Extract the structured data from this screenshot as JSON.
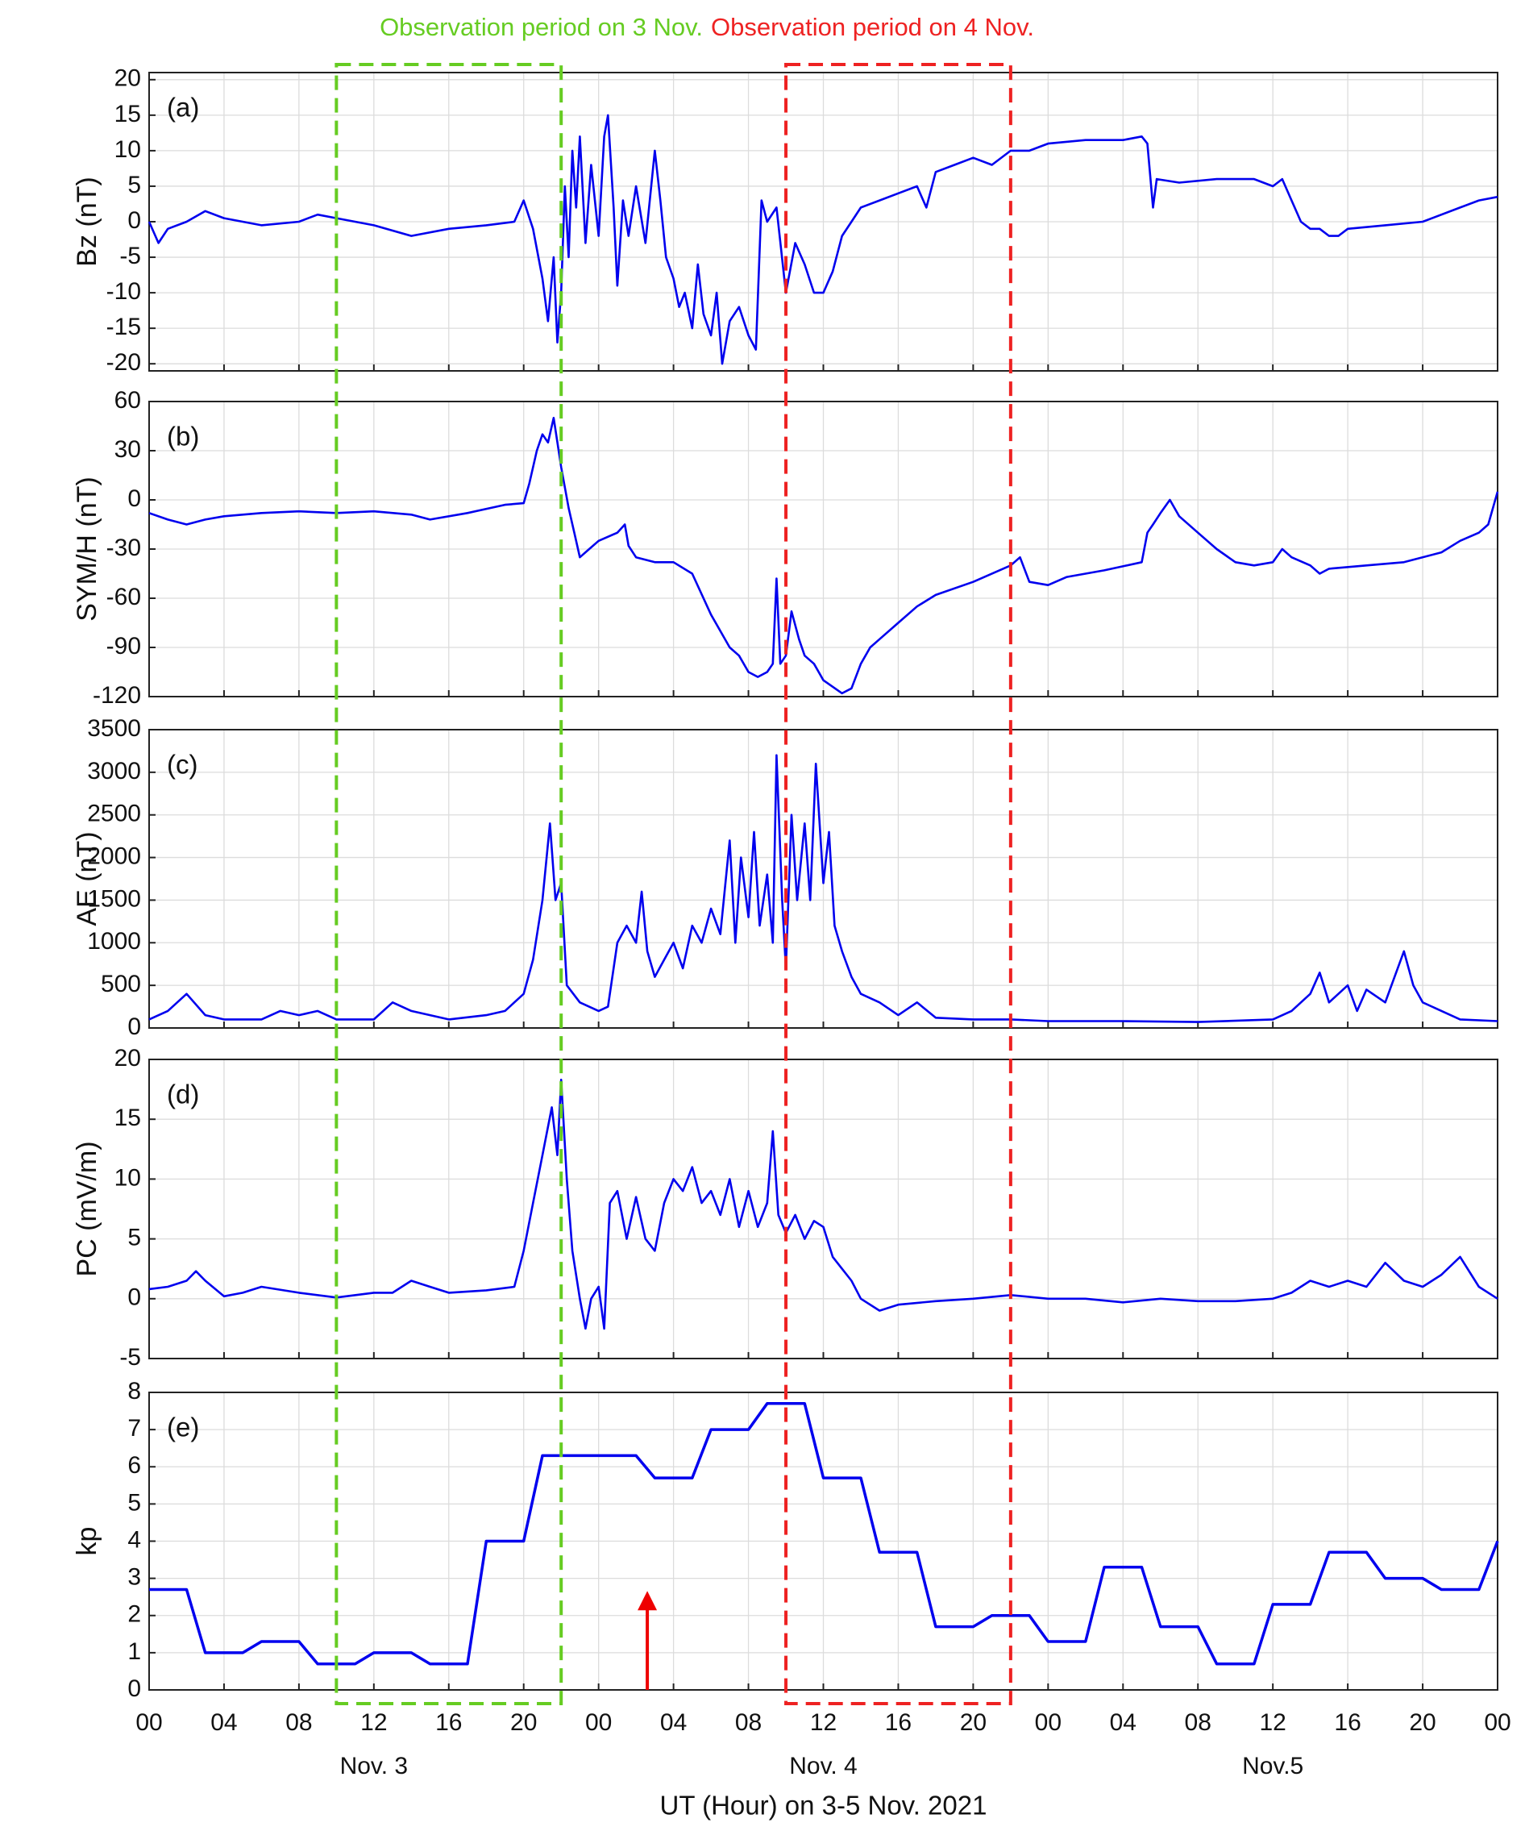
{
  "observation_periods": [
    {
      "label": "Observation period on 3 Nov.",
      "color": "#66cc22",
      "start": 10,
      "end": 22
    },
    {
      "label": "Observation period on 4 Nov.",
      "color": "#ee2222",
      "start": 34,
      "end": 46
    }
  ],
  "chart_data": [
    {
      "type": "line",
      "panel_label": "(a)",
      "ylabel": "Bz (nT)",
      "color": "#0000ee",
      "grid": true,
      "xlim": [
        0,
        72
      ],
      "xticks": [
        0,
        4,
        8,
        12,
        16,
        20,
        24,
        28,
        32,
        36,
        40,
        44,
        48,
        52,
        56,
        60,
        64,
        68,
        72
      ],
      "ylim": [
        -21,
        21
      ],
      "yticks": [
        -20,
        -15,
        -10,
        -5,
        0,
        5,
        10,
        15,
        20
      ],
      "x": [
        0,
        0.5,
        1,
        2,
        3,
        4,
        6,
        8,
        9,
        10,
        12,
        14,
        16,
        18,
        19.5,
        20,
        20.5,
        21,
        21.3,
        21.6,
        21.8,
        22,
        22.2,
        22.4,
        22.6,
        22.8,
        23,
        23.3,
        23.6,
        24,
        24.3,
        24.5,
        24.8,
        25,
        25.3,
        25.6,
        26,
        26.5,
        27,
        27.3,
        27.6,
        28,
        28.3,
        28.6,
        29,
        29.3,
        29.6,
        30,
        30.3,
        30.6,
        31,
        31.5,
        32,
        32.4,
        32.7,
        33,
        33.5,
        34,
        34.5,
        35,
        35.5,
        36,
        36.5,
        37,
        37.5,
        38,
        39,
        40,
        41,
        41.5,
        42,
        43,
        44,
        45,
        46,
        47,
        48,
        50,
        52,
        53,
        53.3,
        53.6,
        53.8,
        55,
        57,
        59,
        60,
        60.5,
        61,
        61.5,
        62,
        62.5,
        63,
        63.5,
        64,
        66,
        68,
        70,
        71,
        72
      ],
      "values": [
        0,
        -3,
        -1,
        0,
        1.5,
        0.5,
        -0.5,
        0,
        1,
        0.5,
        -0.5,
        -2,
        -1,
        -0.5,
        0,
        3,
        -1,
        -8,
        -14,
        -5,
        -17,
        -10,
        5,
        -5,
        10,
        2,
        12,
        -3,
        8,
        -2,
        12,
        15,
        2,
        -9,
        3,
        -2,
        5,
        -3,
        10,
        3,
        -5,
        -8,
        -12,
        -10,
        -15,
        -6,
        -13,
        -16,
        -10,
        -20,
        -14,
        -12,
        -16,
        -18,
        3,
        0,
        2,
        -10,
        -3,
        -6,
        -10,
        -10,
        -7,
        -2,
        0,
        2,
        3,
        4,
        5,
        2,
        7,
        8,
        9,
        8,
        10,
        10,
        11,
        11.5,
        11.5,
        12,
        11,
        2,
        6,
        5.5,
        6,
        6,
        5,
        6,
        3,
        0,
        -1,
        -1,
        -2,
        -2,
        -1,
        -0.5,
        0,
        2,
        3,
        3.5
      ]
    },
    {
      "type": "line",
      "panel_label": "(b)",
      "ylabel": "SYM/H (nT)",
      "color": "#0000ee",
      "grid": true,
      "xlim": [
        0,
        72
      ],
      "xticks": [
        0,
        4,
        8,
        12,
        16,
        20,
        24,
        28,
        32,
        36,
        40,
        44,
        48,
        52,
        56,
        60,
        64,
        68,
        72
      ],
      "ylim": [
        -120,
        60
      ],
      "yticks": [
        -120,
        -90,
        -60,
        -30,
        0,
        30,
        60
      ],
      "x": [
        0,
        1,
        2,
        3,
        4,
        6,
        8,
        10,
        12,
        14,
        15,
        17,
        19,
        20,
        20.3,
        20.7,
        21,
        21.3,
        21.6,
        22,
        22.4,
        22.7,
        23,
        23.5,
        24,
        25,
        25.4,
        25.6,
        26,
        27,
        28,
        29,
        30,
        31,
        31.5,
        32,
        32.5,
        33,
        33.3,
        33.5,
        33.7,
        34,
        34.3,
        34.7,
        35,
        35.5,
        36,
        36.5,
        37,
        37.5,
        38,
        38.5,
        39,
        40,
        41,
        42,
        44,
        46,
        46.5,
        47,
        48,
        49,
        51,
        53,
        53.3,
        53.6,
        54,
        54.5,
        55,
        56,
        57,
        58,
        59,
        60,
        60.5,
        61,
        62,
        62.5,
        63,
        65,
        67,
        69,
        70,
        71,
        71.5,
        72
      ],
      "values": [
        -8,
        -12,
        -15,
        -12,
        -10,
        -8,
        -7,
        -8,
        -7,
        -9,
        -12,
        -8,
        -3,
        -2,
        10,
        30,
        40,
        35,
        50,
        20,
        -5,
        -20,
        -35,
        -30,
        -25,
        -20,
        -15,
        -28,
        -35,
        -38,
        -38,
        -45,
        -70,
        -90,
        -95,
        -105,
        -108,
        -105,
        -100,
        -48,
        -100,
        -95,
        -68,
        -85,
        -95,
        -100,
        -110,
        -114,
        -118,
        -115,
        -100,
        -90,
        -85,
        -75,
        -65,
        -58,
        -50,
        -40,
        -35,
        -50,
        -52,
        -47,
        -43,
        -38,
        -20,
        -15,
        -8,
        0,
        -10,
        -20,
        -30,
        -38,
        -40,
        -38,
        -30,
        -35,
        -40,
        -45,
        -42,
        -40,
        -38,
        -32,
        -25,
        -20,
        -15,
        5
      ]
    },
    {
      "type": "line",
      "panel_label": "(c)",
      "ylabel": "AE (nT)",
      "color": "#0000ee",
      "grid": true,
      "xlim": [
        0,
        72
      ],
      "xticks": [
        0,
        4,
        8,
        12,
        16,
        20,
        24,
        28,
        32,
        36,
        40,
        44,
        48,
        52,
        56,
        60,
        64,
        68,
        72
      ],
      "ylim": [
        0,
        3500
      ],
      "yticks": [
        0,
        500,
        1000,
        1500,
        2000,
        2500,
        3000,
        3500
      ],
      "x": [
        0,
        1,
        2,
        3,
        4,
        6,
        7,
        8,
        9,
        10,
        12,
        13,
        14,
        16,
        18,
        19,
        20,
        20.5,
        21,
        21.4,
        21.7,
        22,
        22.3,
        23,
        24,
        24.5,
        25,
        25.5,
        26,
        26.3,
        26.6,
        27,
        27.5,
        28,
        28.5,
        29,
        29.5,
        30,
        30.5,
        31,
        31.3,
        31.6,
        32,
        32.3,
        32.6,
        33,
        33.3,
        33.5,
        33.8,
        34,
        34.3,
        34.6,
        35,
        35.3,
        35.6,
        36,
        36.3,
        36.6,
        37,
        37.5,
        38,
        39,
        40,
        41,
        42,
        44,
        46,
        48,
        52,
        56,
        60,
        61,
        62,
        62.5,
        63,
        64,
        64.5,
        65,
        66,
        66.5,
        67,
        67.5,
        68,
        70,
        72
      ],
      "values": [
        100,
        200,
        400,
        150,
        100,
        100,
        200,
        150,
        200,
        100,
        100,
        300,
        200,
        100,
        150,
        200,
        400,
        800,
        1500,
        2400,
        1500,
        1700,
        500,
        300,
        200,
        250,
        1000,
        1200,
        1000,
        1600,
        900,
        600,
        800,
        1000,
        700,
        1200,
        1000,
        1400,
        1100,
        2200,
        1000,
        2000,
        1300,
        2300,
        1200,
        1800,
        1000,
        3200,
        1500,
        700,
        2500,
        1500,
        2400,
        1500,
        3100,
        1700,
        2300,
        1200,
        900,
        600,
        400,
        300,
        150,
        300,
        120,
        100,
        100,
        80,
        80,
        70,
        100,
        200,
        400,
        650,
        300,
        500,
        200,
        450,
        300,
        600,
        900,
        500,
        300,
        100,
        80
      ]
    },
    {
      "type": "line",
      "panel_label": "(d)",
      "ylabel": "PC (mV/m)",
      "color": "#0000ee",
      "grid": true,
      "xlim": [
        0,
        72
      ],
      "xticks": [
        0,
        4,
        8,
        12,
        16,
        20,
        24,
        28,
        32,
        36,
        40,
        44,
        48,
        52,
        56,
        60,
        64,
        68,
        72
      ],
      "ylim": [
        -5,
        20
      ],
      "yticks": [
        -5,
        0,
        5,
        10,
        15,
        20
      ],
      "x": [
        0,
        1,
        2,
        2.5,
        3,
        4,
        5,
        6,
        8,
        10,
        12,
        13,
        14,
        15,
        16,
        18,
        19.5,
        20,
        20.5,
        21,
        21.5,
        21.8,
        22,
        22.3,
        22.6,
        23,
        23.3,
        23.6,
        24,
        24.3,
        24.6,
        25,
        25.5,
        26,
        26.5,
        27,
        27.5,
        28,
        28.5,
        29,
        29.5,
        30,
        30.5,
        31,
        31.5,
        32,
        32.5,
        33,
        33.3,
        33.6,
        34,
        34.5,
        35,
        35.5,
        36,
        36.5,
        37,
        37.5,
        38,
        39,
        40,
        42,
        44,
        46,
        48,
        50,
        52,
        54,
        56,
        58,
        60,
        61,
        62,
        63,
        64,
        65,
        66,
        67,
        68,
        69,
        70,
        71,
        72
      ],
      "values": [
        0.8,
        1,
        1.5,
        2.3,
        1.5,
        0.2,
        0.5,
        1,
        0.5,
        0.1,
        0.5,
        0.5,
        1.5,
        1,
        0.5,
        0.7,
        1,
        4,
        8,
        12,
        16,
        12,
        18.3,
        10,
        4,
        0,
        -2.5,
        0,
        1,
        -2.5,
        8,
        9,
        5,
        8.5,
        5,
        4,
        8,
        10,
        9,
        11,
        8,
        9,
        7,
        10,
        6,
        9,
        6,
        8,
        14,
        7,
        5.5,
        7,
        5,
        6.5,
        6,
        3.5,
        2.5,
        1.5,
        0,
        -1,
        -0.5,
        -0.2,
        0,
        0.3,
        0,
        0,
        -0.3,
        0,
        -0.2,
        -0.2,
        0,
        0.5,
        1.5,
        1,
        1.5,
        1,
        3,
        1.5,
        1,
        2,
        3.5,
        1,
        0
      ]
    },
    {
      "type": "line",
      "panel_label": "(e)",
      "ylabel": "kp",
      "color": "#0000ee",
      "grid": true,
      "xlabel": "UT (Hour) on 3-5 Nov. 2021",
      "xlim": [
        0,
        72
      ],
      "xticks": [
        {
          "value": 0,
          "label": "00"
        },
        {
          "value": 4,
          "label": "04"
        },
        {
          "value": 8,
          "label": "08"
        },
        {
          "value": 12,
          "label": "12"
        },
        {
          "value": 16,
          "label": "16"
        },
        {
          "value": 20,
          "label": "20"
        },
        {
          "value": 24,
          "label": "00"
        },
        {
          "value": 28,
          "label": "04"
        },
        {
          "value": 32,
          "label": "08"
        },
        {
          "value": 36,
          "label": "12"
        },
        {
          "value": 40,
          "label": "16"
        },
        {
          "value": 44,
          "label": "20"
        },
        {
          "value": 48,
          "label": "00"
        },
        {
          "value": 52,
          "label": "04"
        },
        {
          "value": 56,
          "label": "08"
        },
        {
          "value": 60,
          "label": "12"
        },
        {
          "value": 64,
          "label": "16"
        },
        {
          "value": 68,
          "label": "20"
        },
        {
          "value": 72,
          "label": "00"
        }
      ],
      "date_labels": [
        {
          "value": 12,
          "label": "Nov. 3"
        },
        {
          "value": 36,
          "label": "Nov. 4"
        },
        {
          "value": 60,
          "label": "Nov.5"
        }
      ],
      "arrow": {
        "x": 26.6,
        "y": 2.4,
        "color": "#ee0000"
      },
      "ylim": [
        0,
        8
      ],
      "yticks": [
        0,
        1,
        2,
        3,
        4,
        5,
        6,
        7,
        8
      ],
      "x": [
        0,
        2,
        3,
        5,
        6,
        8,
        9,
        11,
        12,
        14,
        15,
        17,
        18,
        20,
        21,
        26,
        27,
        29,
        30,
        32,
        33,
        35,
        36,
        38,
        39,
        41,
        42,
        44,
        45,
        47,
        48,
        50,
        51,
        53,
        54,
        56,
        57,
        59,
        60,
        62,
        63,
        65,
        66,
        68,
        69,
        71,
        72
      ],
      "values": [
        2.7,
        2.7,
        1,
        1,
        1.3,
        1.3,
        0.7,
        0.7,
        1,
        1,
        0.7,
        0.7,
        4,
        4,
        6.3,
        6.3,
        5.7,
        5.7,
        7,
        7,
        7.7,
        7.7,
        5.7,
        5.7,
        3.7,
        3.7,
        1.7,
        1.7,
        2,
        2,
        1.3,
        1.3,
        3.3,
        3.3,
        1.7,
        1.7,
        0.7,
        0.7,
        2.3,
        2.3,
        3.7,
        3.7,
        3,
        3,
        2.7,
        2.7,
        4
      ]
    }
  ]
}
